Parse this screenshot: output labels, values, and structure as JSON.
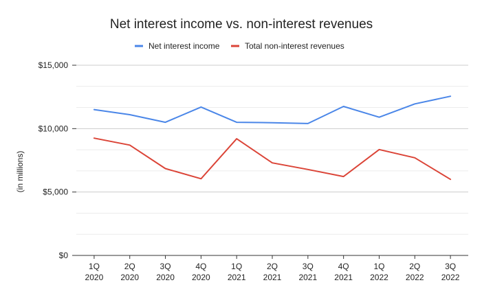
{
  "chart_data": {
    "type": "line",
    "title": "Net interest income vs. non-interest revenues",
    "ylabel": "(in millions)",
    "xlabel": "",
    "categories": [
      [
        "1Q",
        "2020"
      ],
      [
        "2Q",
        "2020"
      ],
      [
        "3Q",
        "2020"
      ],
      [
        "4Q",
        "2020"
      ],
      [
        "1Q",
        "2021"
      ],
      [
        "2Q",
        "2021"
      ],
      [
        "3Q",
        "2021"
      ],
      [
        "4Q",
        "2021"
      ],
      [
        "1Q",
        "2022"
      ],
      [
        "2Q",
        "2022"
      ],
      [
        "3Q",
        "2022"
      ]
    ],
    "series": [
      {
        "name": "Net interest income",
        "color": "#4a86e8",
        "values": [
          11500,
          11100,
          10500,
          11700,
          10500,
          10470,
          10400,
          11750,
          10900,
          11950,
          12550
        ]
      },
      {
        "name": "Total non-interest revenues",
        "color": "#db4437",
        "values": [
          9250,
          8700,
          6850,
          6050,
          9200,
          7300,
          6780,
          6220,
          8350,
          7700,
          6000
        ]
      }
    ],
    "ylim": [
      0,
      15000
    ],
    "yticks": [
      0,
      5000,
      10000,
      15000
    ],
    "ytick_labels": [
      "$0",
      "$5,000",
      "$10,000",
      "$15,000"
    ],
    "minor_gridlines": true,
    "legend_position": "top"
  }
}
